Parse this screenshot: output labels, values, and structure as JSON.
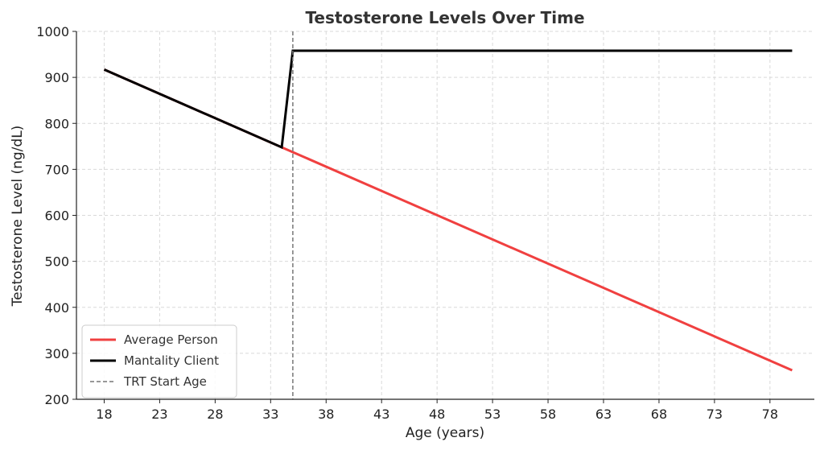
{
  "chart_data": {
    "type": "line",
    "title": "Testosterone Levels Over Time",
    "xlabel": "Age (years)",
    "ylabel": "Testosterone Level (ng/dL)",
    "xlim": [
      15.5,
      82
    ],
    "ylim": [
      200,
      1000
    ],
    "xticks": [
      18,
      23,
      28,
      33,
      38,
      43,
      48,
      53,
      58,
      63,
      68,
      73,
      78
    ],
    "yticks": [
      200,
      300,
      400,
      500,
      600,
      700,
      800,
      900,
      1000
    ],
    "grid": true,
    "legend_position": "lower-left",
    "series": [
      {
        "name": "Average Person",
        "color": "#f04040",
        "style": "solid",
        "x": [
          18,
          34,
          80
        ],
        "y": [
          917,
          748,
          263
        ]
      },
      {
        "name": "Mantality Client",
        "color": "#000000",
        "style": "solid",
        "x": [
          18,
          34,
          35,
          80
        ],
        "y": [
          917,
          748,
          958,
          958
        ]
      }
    ],
    "vline": {
      "name": "TRT Start Age",
      "x": 35,
      "color": "#777777",
      "style": "dashed"
    }
  }
}
